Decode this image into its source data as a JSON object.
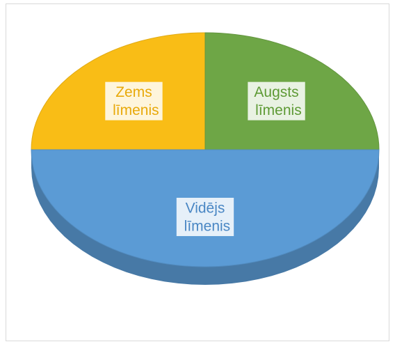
{
  "chart_data": {
    "type": "pie3d",
    "categories": [
      "Zems līmenis",
      "Augsts līmenis",
      "Vidējs līmenis"
    ],
    "values": [
      25,
      25,
      50
    ],
    "colors": [
      "#f9bd16",
      "#6ea646",
      "#5b9bd5"
    ],
    "label_colors": [
      "#e8a90a",
      "#5e9a35",
      "#4a87c4"
    ]
  }
}
